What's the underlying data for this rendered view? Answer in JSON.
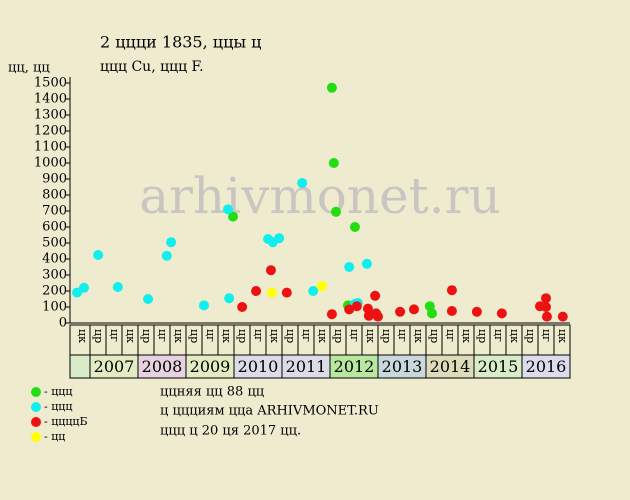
{
  "chart_data": {
    "type": "scatter",
    "title": "2 ццци 1835, ццы ц",
    "subtitle": "ццц Cu, ццц F.",
    "y_label": "цц, цц",
    "watermark": "arhivmonet.ru",
    "notes": [
      "ццняя цц 88 цц",
      "ц ццциям цца ARHIVMONET.RU",
      "ццц ц 20 ця 2017 цц."
    ],
    "xlim": [
      2006.667,
      2017
    ],
    "ylim": [
      0,
      1500
    ],
    "yticks": [
      0,
      100,
      200,
      300,
      400,
      500,
      600,
      700,
      800,
      900,
      1000,
      1100,
      1200,
      1300,
      1400,
      1500
    ],
    "period_labels": [
      "цк",
      "цр",
      "цг",
      "цк",
      "цр",
      "цг",
      "цк",
      "цр",
      "цг",
      "цк",
      "цр",
      "цг",
      "цк",
      "цр",
      "цг",
      "цк",
      "цр",
      "цг",
      "цк",
      "цр",
      "цг",
      "цк",
      "цр",
      "цг",
      "цк",
      "цр",
      "цг",
      "цк",
      "цр",
      "цг",
      "цк"
    ],
    "years": [
      "2007",
      "2008",
      "2009",
      "2010",
      "2011",
      "2012",
      "2013",
      "2014",
      "2015",
      "2016"
    ],
    "year_colors": [
      "#e2ebc2",
      "#e6d2e0",
      "#e2ebc2",
      "#dcdce8",
      "#dcdce8",
      "#b8e8a0",
      "#c8d8dc",
      "#dcdcb8",
      "#d8ecc8",
      "#dcdcec"
    ],
    "first_cell_color": "#d8ecc8",
    "series": [
      {
        "name": "- ццц",
        "color": "#22dd11",
        "x": [
          2012.04,
          2012.08,
          2012.125,
          2009.98,
          2012.52,
          2012.375,
          2014.08,
          2014.125
        ],
        "values": [
          1470,
          1000,
          695,
          665,
          600,
          110,
          105,
          60
        ]
      },
      {
        "name": "- ццц",
        "color": "#11eeee",
        "x": [
          2006.73,
          2006.875,
          2007.17,
          2007.58,
          2008.21,
          2008.6,
          2008.69,
          2009.375,
          2009.875,
          2009.9,
          2010.71,
          2010.81,
          2010.94,
          2011.42,
          2011.65,
          2012.4,
          2012.52,
          2012.58,
          2012.77
        ],
        "values": [
          190,
          220,
          425,
          225,
          150,
          420,
          505,
          110,
          710,
          155,
          525,
          505,
          530,
          875,
          200,
          350,
          120,
          125,
          370
        ]
      },
      {
        "name": "- ццццБ",
        "color": "#ee1111",
        "x": [
          2010.17,
          2010.46,
          2010.77,
          2011.1,
          2012.04,
          2012.4,
          2012.56,
          2012.79,
          2012.81,
          2012.94,
          2012.96,
          2013.0,
          2013.46,
          2013.75,
          2014.54,
          2014.54,
          2015.06,
          2015.58,
          2016.375,
          2016.5,
          2016.5,
          2016.52,
          2016.85
        ],
        "values": [
          100,
          200,
          330,
          190,
          55,
          85,
          105,
          90,
          45,
          170,
          60,
          40,
          70,
          85,
          205,
          75,
          70,
          60,
          105,
          155,
          100,
          40,
          40
        ]
      },
      {
        "name": "- цц",
        "color": "#ffff00",
        "x": [
          2010.79,
          2011.83
        ],
        "values": [
          190,
          230
        ]
      }
    ]
  }
}
